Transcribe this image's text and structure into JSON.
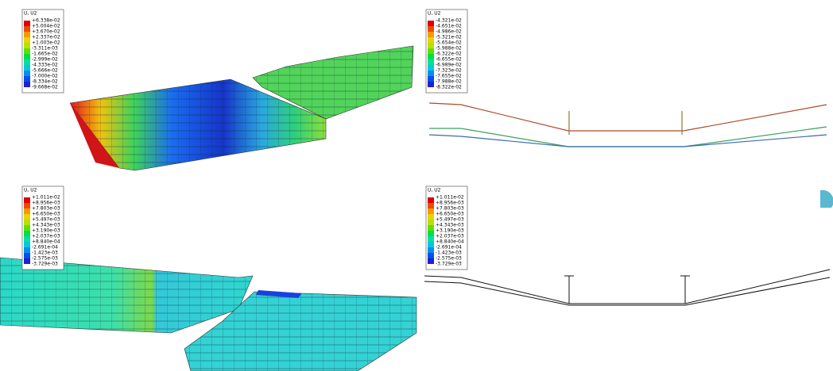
{
  "panels": [
    {
      "legend": {
        "title": "U, U2",
        "values": [
          "+6.338e-02",
          "+5.004e-02",
          "+3.670e-02",
          "+2.337e-02",
          "+1.003e-02",
          "-3.311e-03",
          "-1.665e-02",
          "-2.999e-02",
          "-4.333e-02",
          "-5.666e-02",
          "-7.000e-02",
          "-8.334e-02",
          "-9.668e-02"
        ]
      }
    },
    {
      "legend": {
        "title": "U, U2",
        "values": [
          "-4.321e-02",
          "-4.651e-02",
          "-4.986e-02",
          "-5.321e-02",
          "-5.654e-02",
          "-5.988e-02",
          "-6.322e-02",
          "-6.655e-02",
          "-6.989e-02",
          "-7.323e-02",
          "-7.655e-02",
          "-7.988e-02",
          "-8.322e-02"
        ]
      }
    },
    {
      "legend": {
        "title": "U, U2",
        "values": [
          "+1.011e-02",
          "+8.956e-03",
          "+7.803e-03",
          "+6.650e-03",
          "+5.497e-03",
          "+4.343e-03",
          "+3.190e-03",
          "+2.037e-03",
          "+8.840e-04",
          "-2.691e-04",
          "-1.423e-03",
          "-2.575e-03",
          "-3.729e-03"
        ]
      }
    },
    {
      "legend": {
        "title": "U, U2",
        "values": [
          "+1.011e-02",
          "+8.956e-03",
          "+7.803e-03",
          "+6.650e-03",
          "+5.497e-03",
          "+4.343e-03",
          "+3.190e-03",
          "+2.037e-03",
          "+8.840e-04",
          "-2.691e-04",
          "-1.423e-03",
          "-2.575e-03",
          "-3.729e-03"
        ]
      }
    }
  ]
}
